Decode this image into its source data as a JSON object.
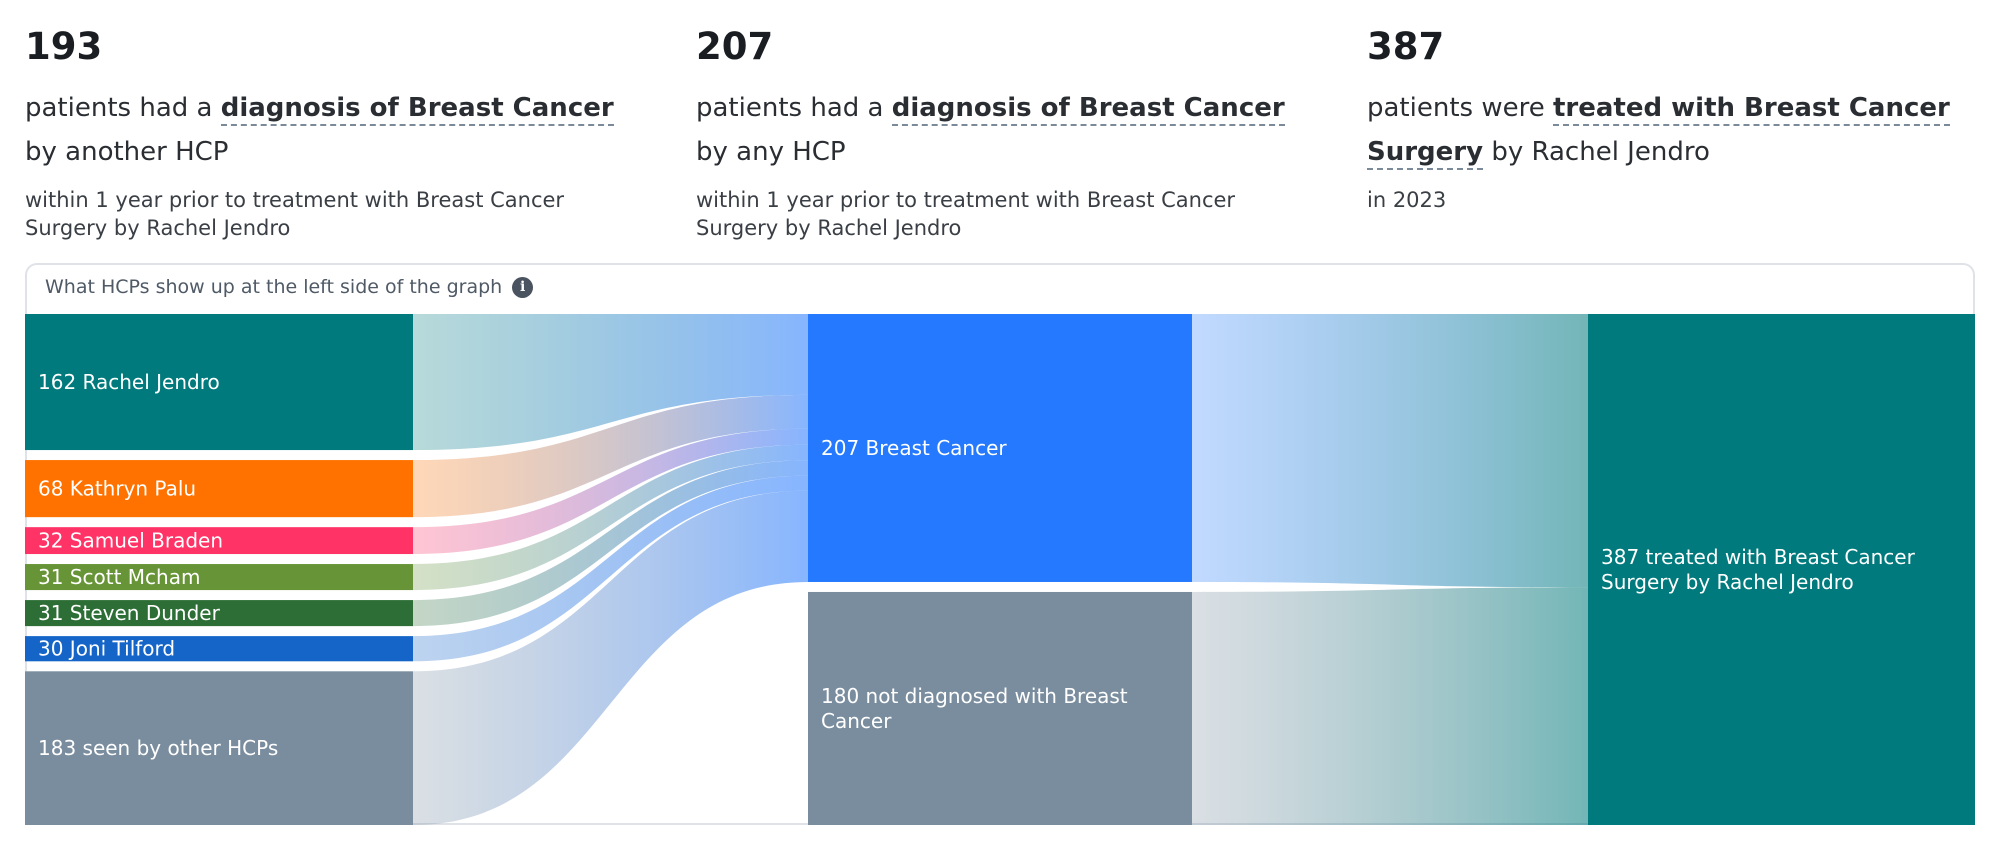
{
  "stats": [
    {
      "number": "193",
      "headline_pre": "patients had a ",
      "headline_emph": "diagnosis of Breast Cancer",
      "headline_post": " by another HCP",
      "sub": "within 1 year prior to treatment with Breast Cancer Surgery by Rachel Jendro"
    },
    {
      "number": "207",
      "headline_pre": "patients had a ",
      "headline_emph": "diagnosis of Breast Cancer",
      "headline_post": " by any HCP",
      "sub": "within 1 year prior to treatment with Breast Cancer Surgery by Rachel Jendro"
    },
    {
      "number": "387",
      "headline_pre": "patients were ",
      "headline_emph": "treated with Breast Cancer Surgery",
      "headline_post": " by Rachel Jendro",
      "sub": "in 2023"
    }
  ],
  "panel": {
    "title": "What HCPs show up at the left side of the graph",
    "info_icon": "info-icon"
  },
  "chart_data": {
    "type": "sankey",
    "columns": [
      [
        {
          "id": "rj",
          "value": 162,
          "label": "162 Rachel Jendro",
          "color": "#007a7c"
        },
        {
          "id": "kp",
          "value": 68,
          "label": "68 Kathryn Palu",
          "color": "#ff7200"
        },
        {
          "id": "sb",
          "value": 32,
          "label": "32 Samuel Braden",
          "color": "#ff3366"
        },
        {
          "id": "sm",
          "value": 31,
          "label": "31 Scott Mcham",
          "color": "#679436"
        },
        {
          "id": "sd",
          "value": 31,
          "label": "31 Steven Dunder",
          "color": "#2c6e35"
        },
        {
          "id": "jt",
          "value": 30,
          "label": "30 Joni Tilford",
          "color": "#1565c8"
        },
        {
          "id": "other",
          "value": 183,
          "label": "183 seen by other HCPs",
          "color": "#7a8d9e"
        }
      ],
      [
        {
          "id": "bc",
          "value": 207,
          "label": "207 Breast Cancer",
          "color": "#2479ff"
        },
        {
          "id": "nbc",
          "value": 180,
          "label": "180 not diagnosed with Breast Cancer",
          "color": "#7a8d9e"
        }
      ],
      [
        {
          "id": "tr",
          "value": 387,
          "label": "387 treated with Breast Cancer Surgery by Rachel Jendro",
          "color": "#007a7c"
        }
      ]
    ],
    "links_to_breast_cancer": [
      "rj",
      "kp",
      "sb",
      "sm",
      "sd",
      "jt",
      "other"
    ],
    "links_to_treated": [
      "bc",
      "nbc"
    ],
    "link_colors": {
      "hcp_to_diagnosis": "#2479ff",
      "diagnosis_to_treated": "#007a7c"
    }
  }
}
